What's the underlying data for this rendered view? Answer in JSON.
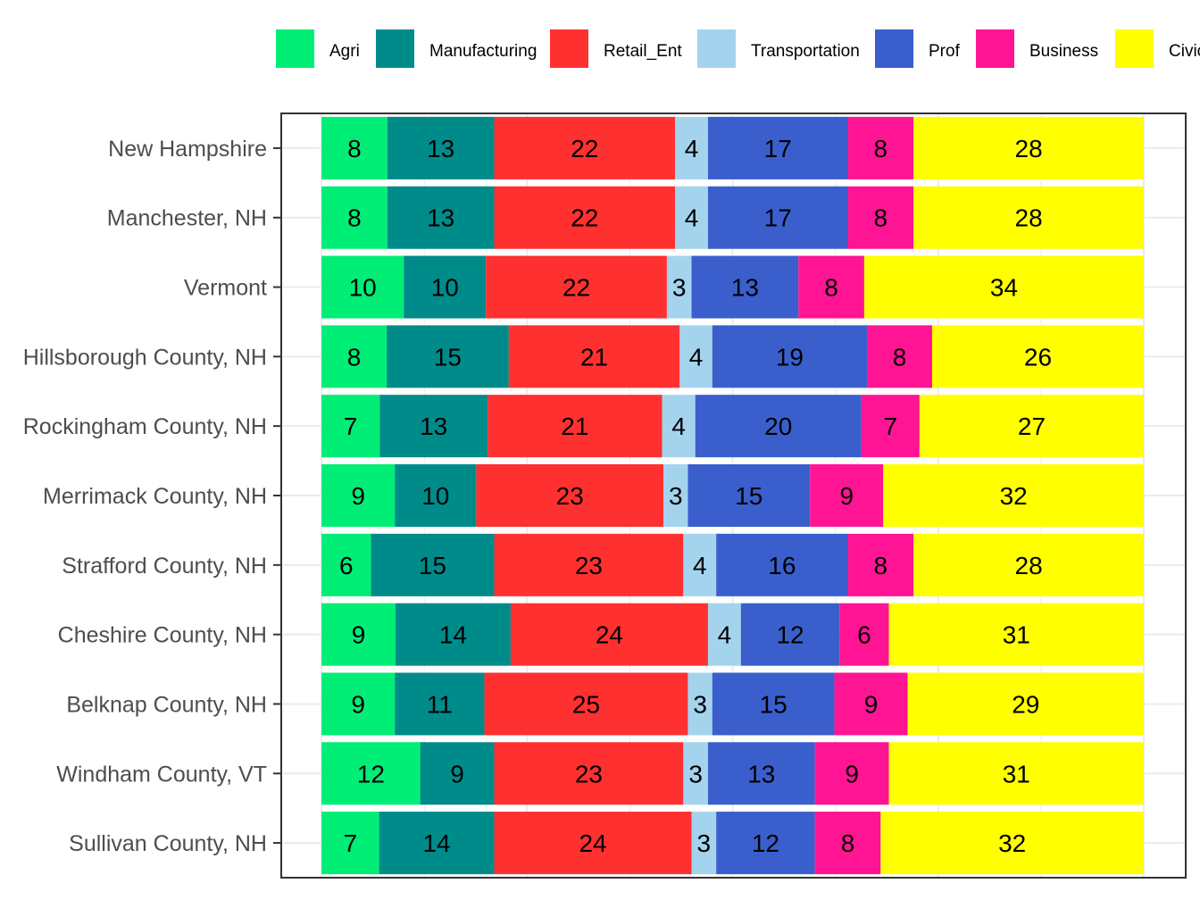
{
  "chart_data": {
    "type": "bar",
    "orientation": "horizontal",
    "stacked": true,
    "title": "",
    "xlabel": "",
    "ylabel": "",
    "xlim": [
      -4.9,
      105.1
    ],
    "grid": true,
    "legend_position": "top",
    "categories": [
      "New Hampshire",
      "Manchester, NH",
      "Vermont",
      "Hillsborough County, NH",
      "Rockingham County, NH",
      "Merrimack County, NH",
      "Strafford County, NH",
      "Cheshire County, NH",
      "Belknap County, NH",
      "Windham County, VT",
      "Sullivan County, NH"
    ],
    "series": [
      {
        "name": "Agri",
        "color": "#00EE76",
        "values": [
          8,
          8,
          10,
          8,
          7,
          9,
          6,
          9,
          9,
          12,
          7
        ]
      },
      {
        "name": "Manufacturing",
        "color": "#008B8B",
        "values": [
          13,
          13,
          10,
          15,
          13,
          10,
          15,
          14,
          11,
          9,
          14
        ]
      },
      {
        "name": "Retail_Ent",
        "color": "#FF3030",
        "values": [
          22,
          22,
          22,
          21,
          21,
          23,
          23,
          24,
          25,
          23,
          24
        ]
      },
      {
        "name": "Transportation",
        "color": "#A4D3EE",
        "values": [
          4,
          4,
          3,
          4,
          4,
          3,
          4,
          4,
          3,
          3,
          3
        ]
      },
      {
        "name": "Prof",
        "color": "#3A5FCD",
        "values": [
          17,
          17,
          13,
          19,
          20,
          15,
          16,
          12,
          15,
          13,
          12
        ]
      },
      {
        "name": "Business",
        "color": "#FF1493",
        "values": [
          8,
          8,
          8,
          8,
          7,
          9,
          8,
          6,
          9,
          9,
          8
        ]
      },
      {
        "name": "Civic",
        "color": "#FFFF00",
        "values": [
          28,
          28,
          34,
          26,
          27,
          32,
          28,
          31,
          29,
          31,
          32
        ]
      }
    ]
  }
}
